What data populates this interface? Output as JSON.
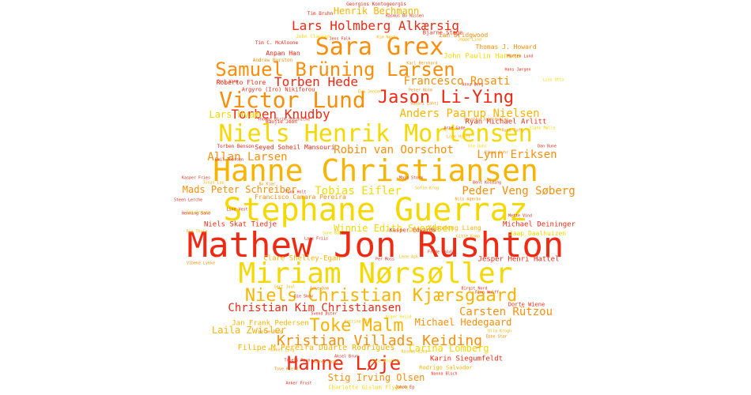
{
  "palette": {
    "red": "#f02a12",
    "orange": "#f98e0a",
    "yellow": "#f5d800",
    "gold": "#f8b400"
  },
  "words": [
    {
      "text": "Mathew Jon Rushton",
      "color": "red"
    },
    {
      "text": "Stephane Guerraz",
      "color": "yellow"
    },
    {
      "text": "Hanne Christiansen",
      "color": "gold"
    },
    {
      "text": "Miriam Nørsøller",
      "color": "yellow"
    },
    {
      "text": "Niels Henrik Mortensen",
      "color": "yellow"
    },
    {
      "text": "Sara Grex",
      "color": "orange"
    },
    {
      "text": "Victor Lund",
      "color": "orange"
    },
    {
      "text": "Samuel Brüning Larsen",
      "color": "orange"
    },
    {
      "text": "Jason Li-Ying",
      "color": "red"
    },
    {
      "text": "Niels Christian Kjærsgaard",
      "color": "gold"
    },
    {
      "text": "Hanne Løje",
      "color": "red"
    },
    {
      "text": "Toke Malm",
      "color": "gold"
    },
    {
      "text": "Kristian Villads Keiding",
      "color": "orange"
    },
    {
      "text": "Lars Holmberg Alkærsig",
      "color": "red"
    },
    {
      "text": "Torben Hede",
      "color": "red"
    },
    {
      "text": "Torben Knudby",
      "color": "red"
    },
    {
      "text": "Francesco Rosati",
      "color": "orange"
    },
    {
      "text": "Anders Paarup Nielsen",
      "color": "gold"
    },
    {
      "text": "Henrik Bechmann",
      "color": "gold"
    },
    {
      "text": "Lynn Eriksen",
      "color": "orange"
    },
    {
      "text": "Allan Larsen",
      "color": "orange"
    },
    {
      "text": "Robin van Oorschot",
      "color": "orange"
    },
    {
      "text": "Tobias Eifler",
      "color": "yellow"
    },
    {
      "text": "Peder Veng Søberg",
      "color": "orange"
    },
    {
      "text": "Christian Kim Christiansen",
      "color": "red"
    },
    {
      "text": "Carsten Rützou",
      "color": "orange"
    },
    {
      "text": "Michael Hedegaard",
      "color": "orange"
    },
    {
      "text": "Stig Irving Olsen",
      "color": "orange"
    },
    {
      "text": "Mads Peter Schreiber",
      "color": "orange"
    },
    {
      "text": "Carina Lomberg",
      "color": "yellow"
    },
    {
      "text": "Lars Hvam",
      "color": "yellow"
    },
    {
      "text": "Laila Zwisler",
      "color": "gold"
    },
    {
      "text": "Winnie Edith Svendsen",
      "color": "yellow"
    },
    {
      "text": "Filipe M Pereira Duarte Rodrigues",
      "color": "gold"
    },
    {
      "text": "Karin Siegumfeldt",
      "color": "red"
    },
    {
      "text": "Michael Deininger",
      "color": "red"
    },
    {
      "text": "Ryan Michael Arlitt",
      "color": "red"
    },
    {
      "text": "Xiaodong Liang",
      "color": "gold"
    },
    {
      "text": "Clare Shelley-Egan",
      "color": "gold"
    },
    {
      "text": "Jesper Henri Hattel",
      "color": "red"
    },
    {
      "text": "Roberto Flore",
      "color": "red"
    },
    {
      "text": "Seyed Soheil Mansouri",
      "color": "red"
    },
    {
      "text": "Ian Bridgwood",
      "color": "orange"
    },
    {
      "text": "Thomas J. Howard",
      "color": "orange"
    },
    {
      "text": "Niels Skat Tiedje",
      "color": "red"
    },
    {
      "text": "Jan Frank Pedersen",
      "color": "gold"
    },
    {
      "text": "Francisco Camara Pereira",
      "color": "orange"
    },
    {
      "text": "Anpan Han",
      "color": "red"
    },
    {
      "text": "Argyro (Iro) Nikiforou",
      "color": "red"
    },
    {
      "text": "Kasper Edwards",
      "color": "red"
    },
    {
      "text": "Charlotte Gislum Flygare",
      "color": "yellow"
    },
    {
      "text": "Jaap Daalhuizen",
      "color": "yellow"
    },
    {
      "text": "Rodrigo Salvador",
      "color": "gold"
    },
    {
      "text": "John Paulin Hansen",
      "color": "yellow"
    },
    {
      "text": "Bjarne Stage",
      "color": "red"
    },
    {
      "text": "Dorte Wiene",
      "color": "red"
    },
    {
      "text": "Baojie Jeon",
      "color": "red"
    },
    {
      "text": "Torben Benson",
      "color": "red"
    },
    {
      "text": "Georgios Kontogeorgis",
      "color": "red"
    },
    {
      "text": "Tim Bruhn",
      "color": "red"
    },
    {
      "text": "Rasmus Bo Nissen",
      "color": "red"
    },
    {
      "text": "John Clausen",
      "color": "yellow"
    },
    {
      "text": "Tim C. McAloone",
      "color": "red"
    },
    {
      "text": "Andrew Burston",
      "color": "orange"
    },
    {
      "text": "Thomas Ulrik Steinicke",
      "color": "red"
    },
    {
      "text": "Timothy John Hobley",
      "color": "orange"
    },
    {
      "text": "Sakari Lahti",
      "color": "orange"
    },
    {
      "text": "Hans Jørgen",
      "color": "red"
    },
    {
      "text": "Jeppe Lind",
      "color": "gold"
    },
    {
      "text": "Karl Bernhard",
      "color": "orange"
    },
    {
      "text": "Lisa Otto",
      "color": "yellow"
    },
    {
      "text": "Morten Lund",
      "color": "red"
    },
    {
      "text": "Eva Jensen",
      "color": "gold"
    },
    {
      "text": "Peter Holm",
      "color": "orange"
    },
    {
      "text": "Anna Berg",
      "color": "red"
    },
    {
      "text": "Kim Nørby",
      "color": "gold"
    },
    {
      "text": "Jens Falk",
      "color": "red"
    },
    {
      "text": "Rune Toft",
      "color": "orange"
    },
    {
      "text": "Ole Dahl",
      "color": "yellow"
    },
    {
      "text": "Maja Storm",
      "color": "red"
    },
    {
      "text": "Sofie Krog",
      "color": "gold"
    },
    {
      "text": "Nils Agerbo",
      "color": "orange"
    },
    {
      "text": "Mette Vind",
      "color": "red"
    },
    {
      "text": "Emil Thorsen",
      "color": "red"
    },
    {
      "text": "Ida Brandt",
      "color": "yellow"
    },
    {
      "text": "Kasper Fries",
      "color": "red"
    },
    {
      "text": "Jonas Lau",
      "color": "gold"
    },
    {
      "text": "Line Vest",
      "color": "red"
    },
    {
      "text": "Bo Kjær",
      "color": "orange"
    },
    {
      "text": "Tina Holt",
      "color": "red"
    },
    {
      "text": "Lene Ask",
      "color": "gold"
    },
    {
      "text": "Per Moss",
      "color": "red"
    },
    {
      "text": "Sune Bak",
      "color": "yellow"
    },
    {
      "text": "Lars Friis",
      "color": "red"
    },
    {
      "text": "Gert Juul",
      "color": "gold"
    },
    {
      "text": "Aske Dam",
      "color": "orange"
    },
    {
      "text": "Rie Skov",
      "color": "red"
    },
    {
      "text": "Mikkel Lyng",
      "color": "gold"
    },
    {
      "text": "Troels Ravn",
      "color": "red"
    },
    {
      "text": "Helle Borg",
      "color": "orange"
    },
    {
      "text": "Svend Øster",
      "color": "red"
    },
    {
      "text": "Katrine Ulv",
      "color": "gold"
    },
    {
      "text": "Asger Hviid",
      "color": "yellow"
    },
    {
      "text": "Birgit Nord",
      "color": "red"
    },
    {
      "text": "Finn Wulff",
      "color": "red"
    },
    {
      "text": "Ulla Krogh",
      "color": "gold"
    },
    {
      "text": "Ebbe Stær",
      "color": "orange"
    },
    {
      "text": "Nanna Bloch",
      "color": "red"
    },
    {
      "text": "Jakob Eg",
      "color": "red"
    },
    {
      "text": "Rasmus Lind",
      "color": "gold"
    },
    {
      "text": "Tove Kjeld",
      "color": "orange"
    },
    {
      "text": "Anker Frost",
      "color": "red"
    },
    {
      "text": "Signe Mølle",
      "color": "yellow"
    },
    {
      "text": "Dan Rune",
      "color": "red"
    },
    {
      "text": "Gitte Kamp",
      "color": "gold"
    },
    {
      "text": "Frode Hald",
      "color": "red"
    },
    {
      "text": "Vibeke Lykke",
      "color": "orange"
    },
    {
      "text": "Henning Sand",
      "color": "red"
    },
    {
      "text": "Pia Thule",
      "color": "gold"
    },
    {
      "text": "Steen Lerche",
      "color": "red"
    },
    {
      "text": "Karen Skau",
      "color": "orange"
    },
    {
      "text": "Aksel Brun",
      "color": "red"
    },
    {
      "text": "Else Winther",
      "color": "yellow"
    },
    {
      "text": "Arne Gade",
      "color": "red"
    },
    {
      "text": "Lone Hjort",
      "color": "gold"
    },
    {
      "text": "Bent Kolding",
      "color": "red"
    },
    {
      "text": "Rikke Dyhr",
      "color": "orange"
    },
    {
      "text": "Carl Vang",
      "color": "red"
    }
  ]
}
